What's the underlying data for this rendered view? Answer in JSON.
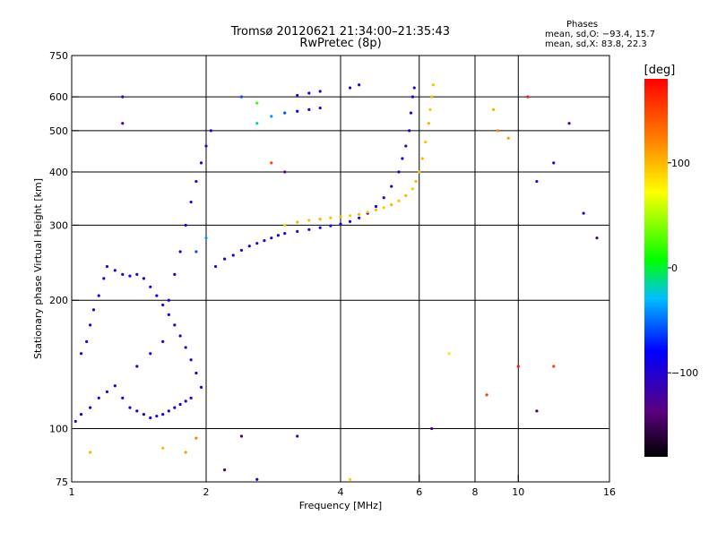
{
  "header": {
    "title_line1": "Tromsø 20120621 21:34:00–21:35:43",
    "title_line2": "RwPretec (8p)"
  },
  "phase_stats": {
    "heading": "Phases",
    "line_o": "mean, sd,O: −93.4, 15.7",
    "line_x": "mean, sd,X:  83.8, 22.3"
  },
  "chart_data": {
    "type": "scatter",
    "xlabel": "Frequency [MHz]",
    "ylabel": "Stationary phase Virtual Height [km]",
    "x_scale": "log",
    "y_scale": "log",
    "xlim": [
      1,
      16
    ],
    "ylim": [
      75,
      750
    ],
    "x_ticks": [
      {
        "v": 1,
        "label": "1"
      },
      {
        "v": 2,
        "label": "2"
      },
      {
        "v": 4,
        "label": "4"
      },
      {
        "v": 6,
        "label": "6"
      },
      {
        "v": 8,
        "label": "8"
      },
      {
        "v": 10,
        "label": "10"
      },
      {
        "v": 16,
        "label": "16"
      }
    ],
    "y_ticks": [
      {
        "v": 75,
        "label": "75"
      },
      {
        "v": 100,
        "label": "100"
      },
      {
        "v": 200,
        "label": "200"
      },
      {
        "v": 300,
        "label": "300"
      },
      {
        "v": 400,
        "label": "400"
      },
      {
        "v": 500,
        "label": "500"
      },
      {
        "v": 600,
        "label": "600"
      },
      {
        "v": 750,
        "label": "750"
      }
    ],
    "x_gridlines": [
      2,
      4,
      6,
      8,
      10
    ],
    "y_gridlines": [
      100,
      200,
      300,
      400,
      500,
      600
    ],
    "grid": true,
    "colorbar": {
      "label": "[deg]",
      "range": [
        -180,
        180
      ],
      "ticks": [
        {
          "v": 100,
          "label": "100"
        },
        {
          "v": 0,
          "label": "0"
        },
        {
          "v": -100,
          "label": "−100"
        }
      ]
    },
    "series": [
      {
        "points": [
          [
            1.02,
            104,
            -100
          ],
          [
            1.05,
            108,
            -95
          ],
          [
            1.1,
            112,
            -100
          ],
          [
            1.15,
            118,
            -98
          ],
          [
            1.2,
            122,
            -95
          ],
          [
            1.25,
            126,
            -100
          ],
          [
            1.3,
            118,
            -90
          ],
          [
            1.35,
            112,
            -100
          ],
          [
            1.4,
            110,
            -95
          ],
          [
            1.45,
            108,
            -100
          ],
          [
            1.5,
            106,
            -92
          ],
          [
            1.55,
            107,
            -100
          ],
          [
            1.6,
            108,
            -95
          ],
          [
            1.65,
            110,
            -100
          ],
          [
            1.7,
            112,
            -90
          ],
          [
            1.75,
            114,
            -95
          ],
          [
            1.8,
            116,
            -100
          ],
          [
            1.85,
            118,
            -95
          ],
          [
            1.05,
            150,
            -95
          ],
          [
            1.08,
            160,
            -100
          ],
          [
            1.1,
            175,
            -90
          ],
          [
            1.12,
            190,
            -100
          ],
          [
            1.15,
            205,
            -95
          ],
          [
            1.18,
            225,
            -100
          ],
          [
            1.2,
            240,
            -98
          ],
          [
            1.25,
            235,
            -92
          ],
          [
            1.3,
            230,
            -100
          ],
          [
            1.35,
            228,
            -95
          ],
          [
            1.4,
            230,
            -100
          ],
          [
            1.45,
            225,
            -95
          ],
          [
            1.5,
            215,
            -100
          ],
          [
            1.55,
            205,
            -95
          ],
          [
            1.6,
            195,
            -100
          ],
          [
            1.65,
            185,
            -90
          ],
          [
            1.7,
            175,
            -100
          ],
          [
            1.75,
            165,
            -95
          ],
          [
            1.8,
            155,
            -100
          ],
          [
            1.85,
            145,
            -95
          ],
          [
            1.9,
            135,
            -100
          ],
          [
            1.95,
            125,
            -95
          ],
          [
            1.4,
            140,
            -100
          ],
          [
            1.5,
            150,
            -95
          ],
          [
            1.6,
            160,
            -90
          ],
          [
            1.65,
            200,
            -95
          ],
          [
            1.7,
            230,
            -100
          ],
          [
            1.75,
            260,
            -95
          ],
          [
            1.8,
            300,
            -90
          ],
          [
            1.85,
            340,
            -95
          ],
          [
            1.9,
            380,
            -100
          ],
          [
            1.95,
            420,
            -95
          ],
          [
            2.0,
            460,
            -98
          ],
          [
            2.05,
            500,
            -100
          ],
          [
            1.9,
            260,
            -60
          ],
          [
            2.0,
            280,
            -40
          ],
          [
            2.1,
            240,
            -95
          ],
          [
            2.2,
            250,
            -100
          ],
          [
            2.3,
            255,
            -95
          ],
          [
            2.4,
            262,
            -100
          ],
          [
            2.5,
            268,
            -95
          ],
          [
            2.6,
            272,
            -100
          ],
          [
            2.7,
            276,
            -95
          ],
          [
            2.8,
            280,
            -100
          ],
          [
            2.9,
            284,
            -95
          ],
          [
            3.0,
            287,
            -100
          ],
          [
            3.2,
            290,
            -95
          ],
          [
            3.4,
            293,
            -100
          ],
          [
            3.6,
            296,
            -95
          ],
          [
            3.8,
            299,
            -100
          ],
          [
            4.0,
            302,
            -95
          ],
          [
            4.2,
            306,
            -100
          ],
          [
            4.4,
            312,
            -95
          ],
          [
            4.6,
            320,
            -100
          ],
          [
            4.8,
            332,
            -95
          ],
          [
            5.0,
            348,
            -100
          ],
          [
            5.2,
            370,
            -95
          ],
          [
            5.4,
            400,
            -100
          ],
          [
            5.5,
            430,
            -95
          ],
          [
            5.6,
            460,
            -100
          ],
          [
            5.7,
            500,
            -95
          ],
          [
            5.75,
            550,
            -100
          ],
          [
            5.8,
            600,
            -95
          ],
          [
            5.85,
            630,
            -100
          ],
          [
            3.0,
            300,
            90
          ],
          [
            3.2,
            305,
            100
          ],
          [
            3.4,
            308,
            95
          ],
          [
            3.6,
            310,
            100
          ],
          [
            3.8,
            312,
            95
          ],
          [
            4.0,
            314,
            100
          ],
          [
            4.2,
            316,
            90
          ],
          [
            4.4,
            318,
            100
          ],
          [
            4.6,
            322,
            95
          ],
          [
            4.8,
            326,
            100
          ],
          [
            5.0,
            330,
            90
          ],
          [
            5.2,
            335,
            100
          ],
          [
            5.4,
            342,
            95
          ],
          [
            5.6,
            352,
            100
          ],
          [
            5.8,
            365,
            90
          ],
          [
            5.9,
            380,
            100
          ],
          [
            6.0,
            400,
            95
          ],
          [
            6.1,
            430,
            100
          ],
          [
            6.2,
            470,
            95
          ],
          [
            6.3,
            520,
            100
          ],
          [
            6.35,
            560,
            90
          ],
          [
            6.4,
            600,
            100
          ],
          [
            6.45,
            640,
            95
          ],
          [
            2.6,
            520,
            -20
          ],
          [
            2.8,
            540,
            -40
          ],
          [
            3.0,
            550,
            -60
          ],
          [
            3.2,
            555,
            -80
          ],
          [
            3.4,
            560,
            -100
          ],
          [
            3.6,
            565,
            -95
          ],
          [
            3.2,
            605,
            -90
          ],
          [
            3.4,
            612,
            -95
          ],
          [
            3.6,
            618,
            -100
          ],
          [
            4.2,
            630,
            -95
          ],
          [
            4.4,
            640,
            -100
          ],
          [
            1.3,
            600,
            -110
          ],
          [
            1.3,
            520,
            -120
          ],
          [
            2.4,
            600,
            -60
          ],
          [
            2.6,
            580,
            20
          ],
          [
            2.8,
            420,
            150
          ],
          [
            3.0,
            400,
            -130
          ],
          [
            1.6,
            90,
            100
          ],
          [
            1.8,
            88,
            110
          ],
          [
            1.9,
            95,
            120
          ],
          [
            2.4,
            96,
            -140
          ],
          [
            3.2,
            96,
            -110
          ],
          [
            8.5,
            120,
            150
          ],
          [
            8.8,
            560,
            100
          ],
          [
            9.0,
            500,
            120
          ],
          [
            9.5,
            480,
            110
          ],
          [
            10.5,
            600,
            170
          ],
          [
            11,
            380,
            -100
          ],
          [
            12,
            420,
            -100
          ],
          [
            13,
            520,
            -130
          ],
          [
            14,
            320,
            -110
          ],
          [
            15,
            280,
            -140
          ],
          [
            12,
            140,
            150
          ],
          [
            10,
            140,
            170
          ],
          [
            11,
            110,
            -140
          ],
          [
            6.4,
            100,
            -120
          ],
          [
            7.0,
            150,
            80
          ],
          [
            2.2,
            80,
            -140
          ],
          [
            2.6,
            76,
            -100
          ],
          [
            4.2,
            76,
            90
          ],
          [
            1.1,
            88,
            100
          ]
        ]
      }
    ]
  }
}
